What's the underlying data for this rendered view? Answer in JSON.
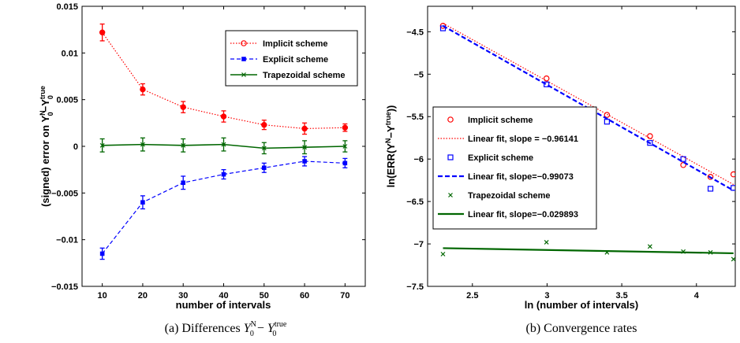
{
  "colors": {
    "implicit": "#ff0000",
    "explicit": "#0000ff",
    "trapezoidal": "#006600"
  },
  "chart_data": [
    {
      "type": "line",
      "caption": "(a) Differences Y0N − Y0true",
      "xlabel": "number of intervals",
      "ylabel": "(signed) error on Y0N − Y0true",
      "xlim": [
        5,
        75
      ],
      "ylim": [
        -0.015,
        0.015
      ],
      "xticks": [
        10,
        20,
        30,
        40,
        50,
        60,
        70
      ],
      "yticks": [
        -0.015,
        -0.01,
        -0.005,
        0,
        0.005,
        0.01,
        0.015
      ],
      "ytick_labels": [
        "−0.015",
        "−0.01",
        "−0.005",
        "0",
        "0.005",
        "0.01",
        "0.015"
      ],
      "legend_position": "top-right",
      "x": [
        10,
        20,
        30,
        40,
        50,
        60,
        70
      ],
      "series": [
        {
          "name": "Implicit scheme",
          "values": [
            0.0122,
            0.0061,
            0.0042,
            0.0032,
            0.0023,
            0.0019,
            0.002
          ],
          "err": [
            0.0009,
            0.0006,
            0.0006,
            0.0006,
            0.0005,
            0.0006,
            0.0004
          ]
        },
        {
          "name": "Explicit scheme",
          "values": [
            -0.0115,
            -0.006,
            -0.0039,
            -0.003,
            -0.0023,
            -0.0016,
            -0.0018
          ],
          "err": [
            0.0006,
            0.0007,
            0.0007,
            0.0005,
            0.0005,
            0.0005,
            0.0005
          ]
        },
        {
          "name": "Trapezoidal scheme",
          "values": [
            0.0001,
            0.0002,
            0.0001,
            0.0002,
            -0.0002,
            -0.0001,
            0.0
          ],
          "err": [
            0.0007,
            0.0007,
            0.0007,
            0.0007,
            0.0006,
            0.0007,
            0.0006
          ]
        }
      ]
    },
    {
      "type": "scatter",
      "caption": "(b) Convergence rates",
      "xlabel": "ln (number of intervals)",
      "ylabel": "ln(ERR(YN − Ytrue))",
      "xlim": [
        2.2,
        4.26
      ],
      "ylim": [
        -7.5,
        -4.2
      ],
      "xticks": [
        2.5,
        3,
        3.5,
        4
      ],
      "yticks": [
        -7.5,
        -7,
        -6.5,
        -6,
        -5.5,
        -5,
        -4.5
      ],
      "ytick_labels": [
        "−7.5",
        "−7",
        "−6.5",
        "−6",
        "−5.5",
        "−5",
        "−4.5"
      ],
      "legend_position": "middle-left",
      "x": [
        2.303,
        2.996,
        3.401,
        3.689,
        3.912,
        4.094,
        4.248
      ],
      "series": [
        {
          "name": "Implicit scheme",
          "values": [
            -4.43,
            -5.05,
            -5.48,
            -5.73,
            -6.07,
            -6.21,
            -6.18
          ]
        },
        {
          "name": "Linear fit, slope = −0.96141",
          "fit": [
            -4.4,
            -6.3
          ]
        },
        {
          "name": "Explicit scheme",
          "values": [
            -4.46,
            -5.12,
            -5.56,
            -5.81,
            -6.0,
            -6.35,
            -6.34
          ]
        },
        {
          "name": "Linear fit, slope=−0.99073",
          "fit": [
            -4.43,
            -6.37
          ]
        },
        {
          "name": "Trapezoidal scheme",
          "values": [
            -7.12,
            -6.98,
            -7.1,
            -7.03,
            -7.09,
            -7.1,
            -7.18
          ]
        },
        {
          "name": "Linear fit, slope=−0.029893",
          "fit": [
            -7.05,
            -7.11
          ]
        }
      ]
    }
  ]
}
